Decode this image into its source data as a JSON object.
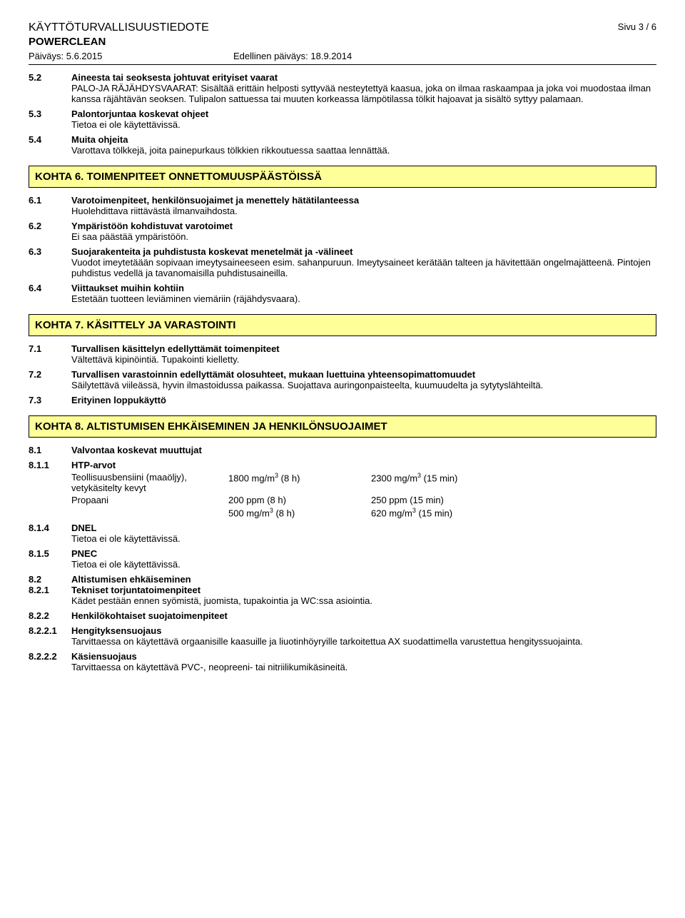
{
  "header": {
    "title": "KÄYTTÖTURVALLISUUSTIEDOTE",
    "product": "POWERCLEAN",
    "date_label": "Päiväys: 5.6.2015",
    "prev_date_label": "Edellinen päiväys: 18.9.2014",
    "page": "Sivu 3 / 6"
  },
  "s52": {
    "num": "5.2",
    "heading": "Aineesta tai seoksesta johtuvat erityiset vaarat",
    "body": "PALO-JA RÄJÄHDYSVAARAT: Sisältää erittäin helposti syttyvää nesteytettyä kaasua, joka on ilmaa raskaampaa ja joka voi muodostaa ilman kanssa räjähtävän seoksen. Tulipalon sattuessa tai muuten korkeassa lämpötilassa tölkit hajoavat ja sisältö syttyy palamaan."
  },
  "s53": {
    "num": "5.3",
    "heading": "Palontorjuntaa koskevat ohjeet",
    "body": "Tietoa ei ole käytettävissä."
  },
  "s54": {
    "num": "5.4",
    "heading": "Muita ohjeita",
    "body": "Varottava tölkkejä, joita painepurkaus tölkkien rikkoutuessa saattaa lennättää."
  },
  "k6": {
    "title": "KOHTA 6. TOIMENPITEET ONNETTOMUUSPÄÄSTÖISSÄ"
  },
  "s61": {
    "num": "6.1",
    "heading": "Varotoimenpiteet, henkilönsuojaimet ja menettely hätätilanteessa",
    "body": "Huolehdittava riittävästä ilmanvaihdosta."
  },
  "s62": {
    "num": "6.2",
    "heading": "Ympäristöön kohdistuvat varotoimet",
    "body": "Ei saa päästää ympäristöön."
  },
  "s63": {
    "num": "6.3",
    "heading": "Suojarakenteita ja puhdistusta koskevat menetelmät ja -välineet",
    "body": "Vuodot imeytetäään sopivaan imeytysaineeseen esim. sahanpuruun. Imeytysaineet kerätään talteen ja hävitettään ongelmajätteenä. Pintojen puhdistus vedellä ja tavanomaisilla puhdistusaineilla."
  },
  "s64": {
    "num": "6.4",
    "heading": "Viittaukset muihin kohtiin",
    "body": "Estetään tuotteen leviäminen viemäriin (räjähdysvaara)."
  },
  "k7": {
    "title": "KOHTA 7. KÄSITTELY JA VARASTOINTI"
  },
  "s71": {
    "num": "7.1",
    "heading": "Turvallisen käsittelyn edellyttämät toimenpiteet",
    "body": "Vältettävä kipinöintiä. Tupakointi kielletty."
  },
  "s72": {
    "num": "7.2",
    "heading": "Turvallisen varastoinnin edellyttämät olosuhteet, mukaan luettuina yhteensopimattomuudet",
    "body": "Säilytettävä viileässä, hyvin ilmastoidussa paikassa. Suojattava auringonpaisteelta, kuumuudelta ja sytytyslähteiltä."
  },
  "s73": {
    "num": "7.3",
    "heading": "Erityinen loppukäyttö"
  },
  "k8": {
    "title": "KOHTA 8. ALTISTUMISEN EHKÄISEMINEN JA HENKILÖNSUOJAIMET"
  },
  "s81": {
    "num": "8.1",
    "heading": "Valvontaa koskevat muuttujat"
  },
  "s811": {
    "num": "8.1.1",
    "heading": "HTP-arvot",
    "row1": {
      "name": "Teollisuusbensiini (maaöljy), vetykäsitelty kevyt",
      "c2a": "1800 mg/m",
      "c2b": " (8 h)",
      "c3a": "2300 mg/m",
      "c3b": " (15 min)"
    },
    "row2": {
      "name": "Propaani",
      "c2": "200 ppm (8 h)",
      "c3": "250 ppm (15 min)"
    },
    "row3": {
      "c2a": "500 mg/m",
      "c2b": " (8 h)",
      "c3a": "620 mg/m",
      "c3b": " (15 min)"
    }
  },
  "s814": {
    "num": "8.1.4",
    "heading": "DNEL",
    "body": "Tietoa ei ole käytettävissä."
  },
  "s815": {
    "num": "8.1.5",
    "heading": "PNEC",
    "body": "Tietoa ei ole käytettävissä."
  },
  "s82": {
    "num": "8.2",
    "heading": "Altistumisen ehkäiseminen"
  },
  "s821": {
    "num": "8.2.1",
    "heading": "Tekniset torjuntatoimenpiteet",
    "body": "Kädet pestään ennen syömistä, juomista, tupakointia ja WC:ssa asiointia."
  },
  "s822": {
    "num": "8.2.2",
    "heading": "Henkilökohtaiset suojatoimenpiteet"
  },
  "s8221": {
    "num": "8.2.2.1",
    "heading": "Hengityksensuojaus",
    "body": "Tarvittaessa on käytettävä orgaanisille kaasuille ja liuotinhöyryille tarkoitettua AX suodattimella varustettua hengityssuojainta."
  },
  "s8222": {
    "num": "8.2.2.2",
    "heading": "Käsiensuojaus",
    "body": "Tarvittaessa on käytettävä PVC-, neopreeni- tai nitriilikumikäsineitä."
  }
}
